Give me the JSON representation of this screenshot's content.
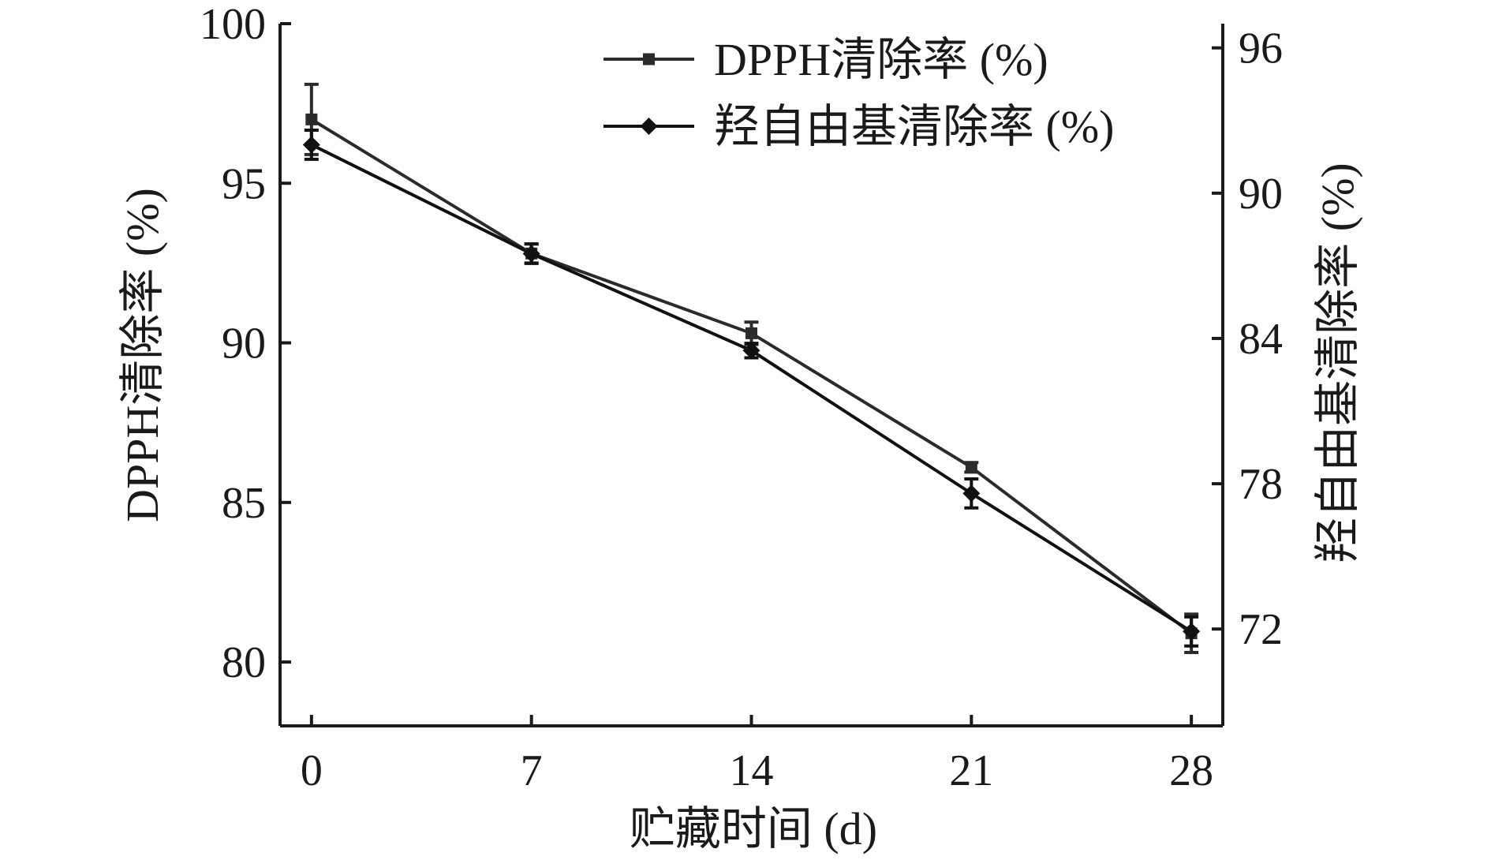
{
  "chart_data": {
    "type": "line",
    "x": [
      0,
      7,
      14,
      21,
      28
    ],
    "xlabel": "贮藏时间 (d)",
    "ylabel": "DPPH清除率 (%)",
    "y2label": "羟自由基清除率 (%)",
    "xlim": [
      -1,
      29
    ],
    "ylim": [
      78,
      100
    ],
    "y2lim": [
      68,
      97
    ],
    "xticks": [
      "0",
      "7",
      "14",
      "21",
      "28"
    ],
    "yticks": [
      "80",
      "85",
      "90",
      "95",
      "100"
    ],
    "y2ticks": [
      "72",
      "78",
      "84",
      "90",
      "96"
    ],
    "legend_position": "top-right",
    "grid": false,
    "series": [
      {
        "name": "DPPH清除率 (%)",
        "axis": "left",
        "marker": "square",
        "color": "#2b2b2b",
        "values": [
          97.0,
          92.8,
          90.3,
          86.1,
          80.9
        ],
        "errors": [
          1.1,
          0.3,
          0.35,
          0.15,
          0.6
        ]
      },
      {
        "name": "羟自由基清除率 (%)",
        "axis": "right",
        "marker": "diamond",
        "color": "#111111",
        "values": [
          92.0,
          87.5,
          83.5,
          77.6,
          71.9
        ],
        "errors": [
          0.6,
          0.4,
          0.3,
          0.6,
          0.6
        ]
      }
    ]
  }
}
